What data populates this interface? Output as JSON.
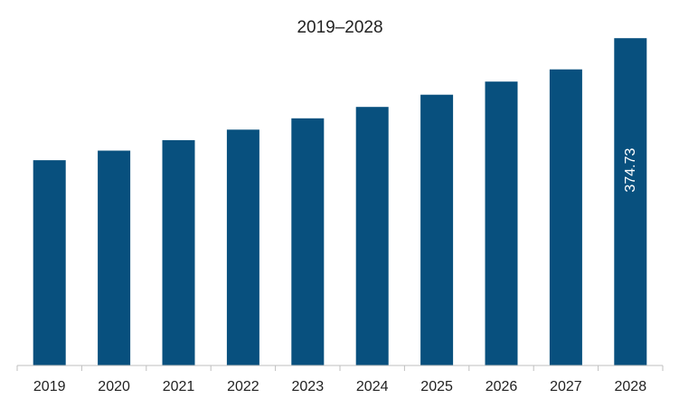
{
  "chart_data": {
    "type": "bar",
    "title": "2019–2028",
    "xlabel": "",
    "ylabel": "",
    "categories": [
      "2019",
      "2020",
      "2021",
      "2022",
      "2023",
      "2024",
      "2025",
      "2026",
      "2027",
      "2028"
    ],
    "values": [
      235,
      246,
      258,
      270,
      283,
      296,
      310,
      325,
      339,
      374.73
    ],
    "data_labels": [
      null,
      null,
      null,
      null,
      null,
      null,
      null,
      null,
      null,
      "374.73"
    ],
    "ylim": [
      0,
      377
    ],
    "grid": false,
    "legend": "none",
    "colors": {
      "bar": "#08507e",
      "axis": "#bfbfbf",
      "text": "#222222",
      "data_label": "#ffffff"
    }
  }
}
